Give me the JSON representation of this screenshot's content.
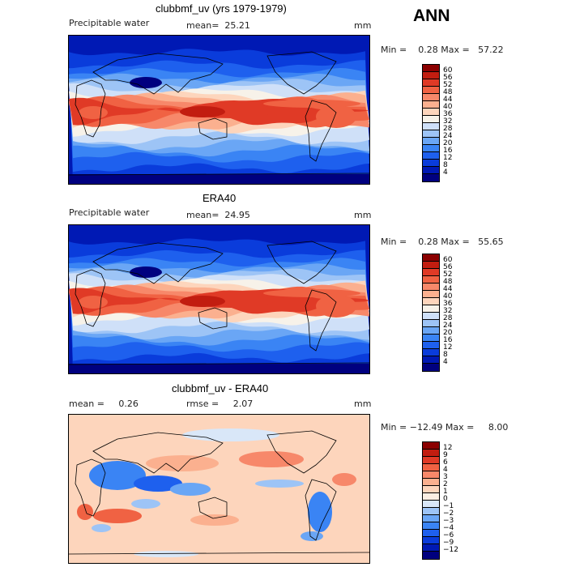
{
  "season_label": "ANN",
  "colors": {
    "pw": [
      "#00007f",
      "#0019b4",
      "#0a3cdb",
      "#1e60ee",
      "#3a84f4",
      "#6aa6f5",
      "#9dc4f6",
      "#cfe0f8",
      "#f7f2e9",
      "#fdd5bc",
      "#fbb08f",
      "#f7886a",
      "#f06243",
      "#e03a26",
      "#c21d10",
      "#8b0000"
    ],
    "diff": [
      "#00007f",
      "#0019b4",
      "#0a3cdb",
      "#1e60ee",
      "#3a84f4",
      "#6aa6f5",
      "#9dc4f6",
      "#d9e7f8",
      "#fbeee3",
      "#fdd5bc",
      "#fbb08f",
      "#f7886a",
      "#f06243",
      "#e03a26",
      "#c21d10",
      "#8b0000"
    ]
  },
  "panels": [
    {
      "title": "clubbmf_uv (yrs 1979-1979)",
      "left_label": "Precipitable water",
      "mean_text": "mean=  25.21",
      "units": "mm",
      "minmax_text": "Min =    0.28 Max =   57.22",
      "colorbar_ticks": [
        "60",
        "56",
        "52",
        "48",
        "44",
        "40",
        "36",
        "32",
        "28",
        "24",
        "20",
        "16",
        "12",
        "8",
        "4"
      ]
    },
    {
      "title": "ERA40",
      "left_label": "Precipitable water",
      "mean_text": "mean=  24.95",
      "units": "mm",
      "minmax_text": "Min =    0.28 Max =   55.65",
      "colorbar_ticks": [
        "60",
        "56",
        "52",
        "48",
        "44",
        "40",
        "36",
        "32",
        "28",
        "24",
        "20",
        "16",
        "12",
        "8",
        "4"
      ]
    },
    {
      "title": "clubbmf_uv - ERA40",
      "left_label": "mean =     0.26",
      "mean_text": "rmse =     2.07",
      "units": "mm",
      "minmax_text": "Min = −12.49 Max =     8.00",
      "colorbar_ticks": [
        "12",
        "9",
        "6",
        "4",
        "3",
        "2",
        "1",
        "0",
        "−1",
        "−2",
        "−3",
        "−4",
        "−6",
        "−9",
        "−12"
      ]
    }
  ],
  "chart_data": [
    {
      "type": "heatmap",
      "title": "clubbmf_uv (yrs 1979-1979)",
      "variable": "Precipitable water",
      "units": "mm",
      "mean": 25.21,
      "min": 0.28,
      "max": 57.22,
      "contour_levels": [
        4,
        8,
        12,
        16,
        20,
        24,
        28,
        32,
        36,
        40,
        44,
        48,
        52,
        56,
        60
      ],
      "zonal_pattern": [
        {
          "lat": 90,
          "value": 3
        },
        {
          "lat": 75,
          "value": 6
        },
        {
          "lat": 60,
          "value": 12
        },
        {
          "lat": 45,
          "value": 18
        },
        {
          "lat": 30,
          "value": 26
        },
        {
          "lat": 15,
          "value": 38
        },
        {
          "lat": 5,
          "value": 48
        },
        {
          "lat": 0,
          "value": 45
        },
        {
          "lat": -15,
          "value": 36
        },
        {
          "lat": -30,
          "value": 24
        },
        {
          "lat": -45,
          "value": 14
        },
        {
          "lat": -60,
          "value": 8
        },
        {
          "lat": -75,
          "value": 3
        },
        {
          "lat": -90,
          "value": 1
        }
      ]
    },
    {
      "type": "heatmap",
      "title": "ERA40",
      "variable": "Precipitable water",
      "units": "mm",
      "mean": 24.95,
      "min": 0.28,
      "max": 55.65,
      "contour_levels": [
        4,
        8,
        12,
        16,
        20,
        24,
        28,
        32,
        36,
        40,
        44,
        48,
        52,
        56,
        60
      ],
      "zonal_pattern": [
        {
          "lat": 90,
          "value": 3
        },
        {
          "lat": 75,
          "value": 6
        },
        {
          "lat": 60,
          "value": 12
        },
        {
          "lat": 45,
          "value": 18
        },
        {
          "lat": 30,
          "value": 26
        },
        {
          "lat": 15,
          "value": 38
        },
        {
          "lat": 5,
          "value": 50
        },
        {
          "lat": 0,
          "value": 46
        },
        {
          "lat": -15,
          "value": 35
        },
        {
          "lat": -30,
          "value": 23
        },
        {
          "lat": -45,
          "value": 14
        },
        {
          "lat": -60,
          "value": 8
        },
        {
          "lat": -75,
          "value": 3
        },
        {
          "lat": -90,
          "value": 1
        }
      ]
    },
    {
      "type": "heatmap",
      "title": "clubbmf_uv - ERA40",
      "units": "mm",
      "mean": 0.26,
      "rmse": 2.07,
      "min": -12.49,
      "max": 8.0,
      "contour_levels": [
        -12,
        -9,
        -6,
        -4,
        -3,
        -2,
        -1,
        0,
        1,
        2,
        3,
        4,
        6,
        9,
        12
      ],
      "zonal_pattern": [
        {
          "lat": 60,
          "value": 0.5
        },
        {
          "lat": 30,
          "value": 1
        },
        {
          "lat": 15,
          "value": 2
        },
        {
          "lat": 0,
          "value": -3
        },
        {
          "lat": -15,
          "value": 1
        },
        {
          "lat": -30,
          "value": 2
        },
        {
          "lat": -60,
          "value": 0.5
        }
      ]
    }
  ]
}
